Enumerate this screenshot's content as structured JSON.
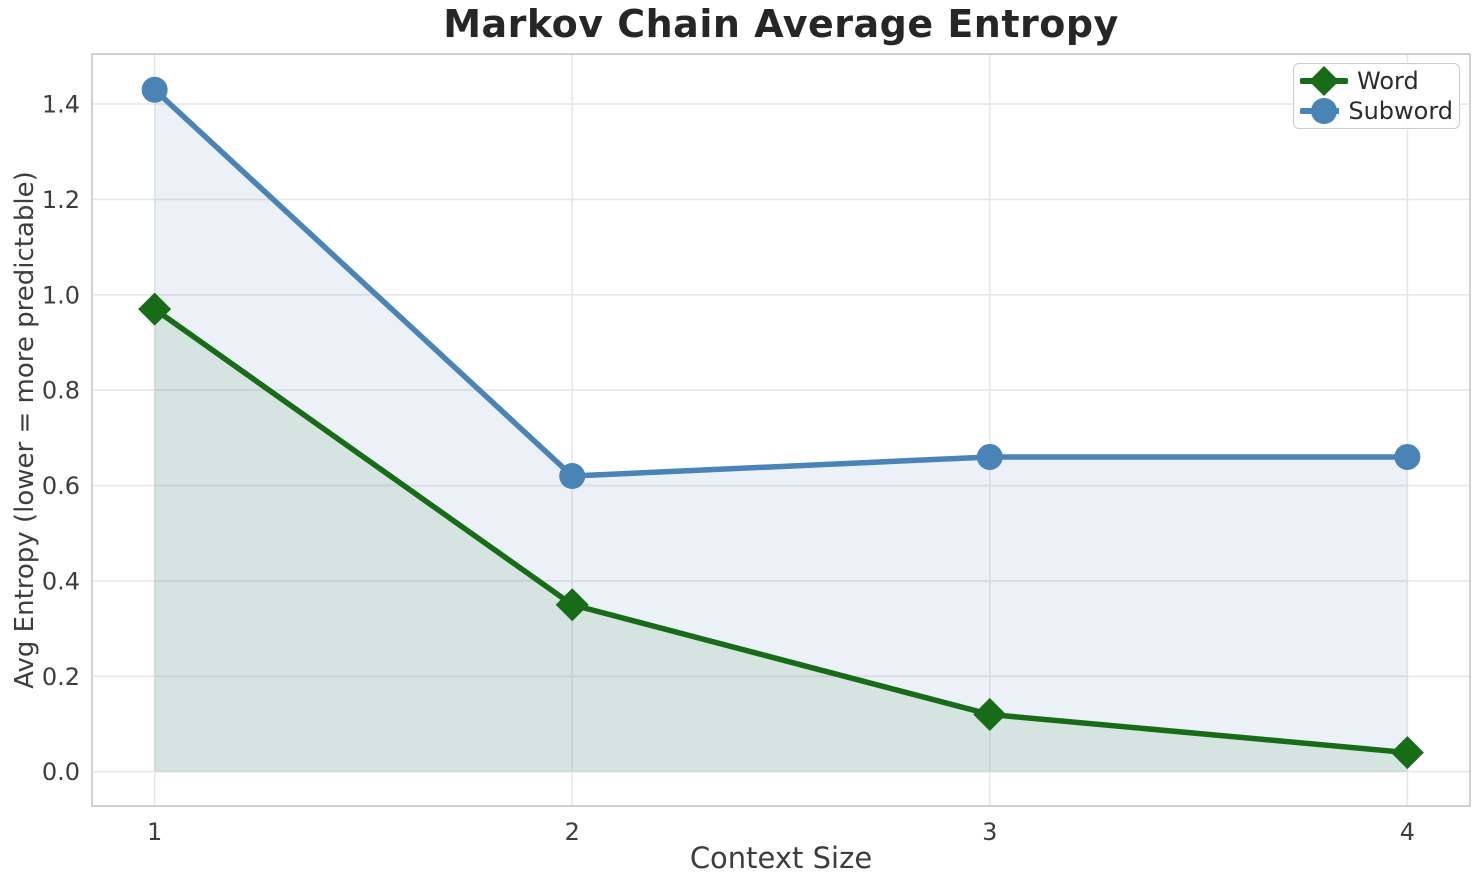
{
  "chart_data": {
    "type": "line",
    "title": "Markov Chain Average Entropy",
    "xlabel": "Context Size",
    "ylabel": "Avg Entropy (lower = more predictable)",
    "x": [
      1,
      2,
      3,
      4
    ],
    "xtick_labels": [
      "1",
      "2",
      "3",
      "4"
    ],
    "ytick_values": [
      0.0,
      0.2,
      0.4,
      0.6,
      0.8,
      1.0,
      1.2,
      1.4
    ],
    "xlim": [
      0.85,
      4.15
    ],
    "ylim": [
      -0.072,
      1.505
    ],
    "grid": true,
    "area_fill_baseline": 0,
    "legend_position": "upper-right",
    "series": [
      {
        "name": "Word",
        "marker": "diamond",
        "color": "#186c18",
        "fill_alpha": 0.1,
        "values": [
          0.97,
          0.35,
          0.12,
          0.04
        ]
      },
      {
        "name": "Subword",
        "marker": "circle",
        "color": "#4a83b5",
        "fill_alpha": 0.11,
        "values": [
          1.43,
          0.62,
          0.66,
          0.66
        ]
      }
    ]
  },
  "colors": {
    "background": "#ffffff",
    "grid": "#e7e7e7",
    "spine": "#cccccc",
    "title_text": "#262626",
    "tick_text": "#3d3d3d",
    "legend_border": "#cccccc"
  }
}
